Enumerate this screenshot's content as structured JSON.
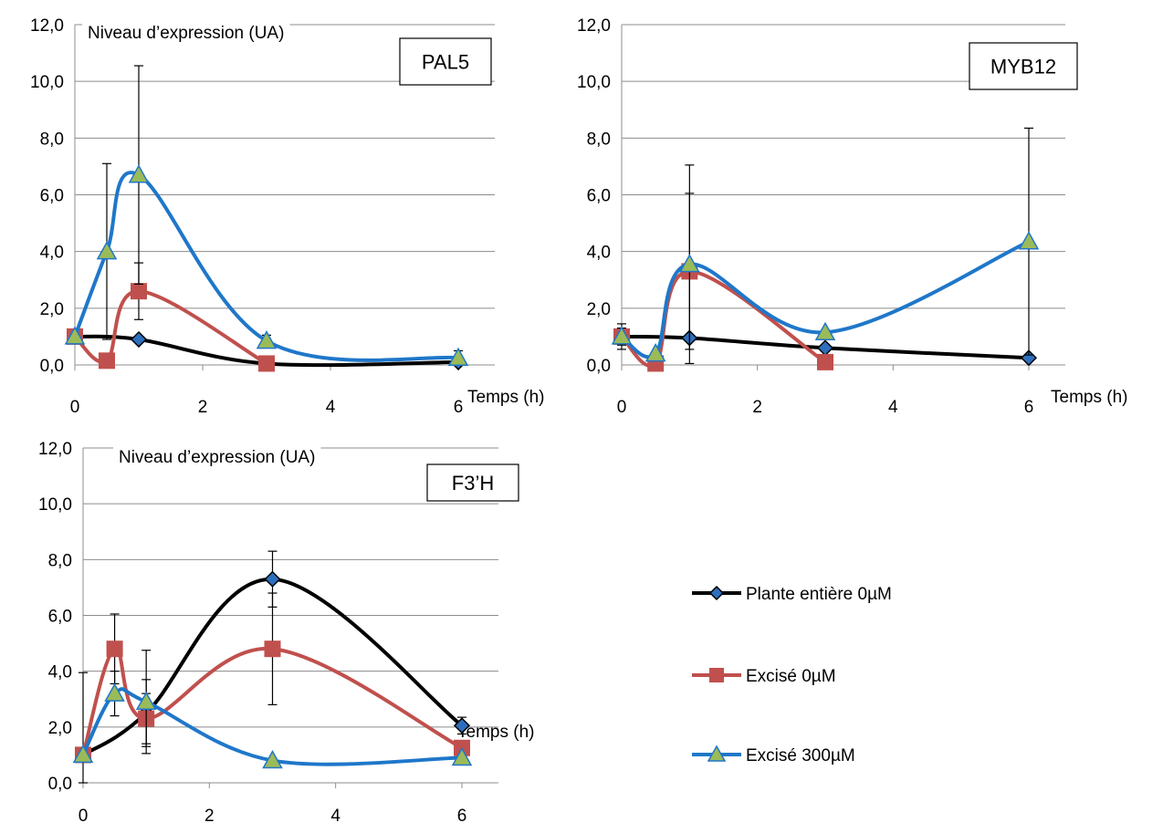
{
  "chart_data": [
    {
      "type": "line",
      "title": "PAL5",
      "ylabel": "Niveau d’expression (UA)",
      "xlabel": "Temps (h)",
      "xlim": [
        0,
        6
      ],
      "ylim": [
        0,
        12
      ],
      "x_ticks": [
        "0",
        "2",
        "4",
        "6"
      ],
      "y_ticks": [
        "0,0",
        "2,0",
        "4,0",
        "6,0",
        "8,0",
        "10,0",
        "12,0"
      ],
      "grid": true,
      "series": [
        {
          "name": "Plante entière 0µM",
          "x": [
            0,
            1,
            3,
            6
          ],
          "y": [
            1.0,
            0.9,
            0.05,
            0.1
          ],
          "err": [
            0.05,
            0.05,
            0.05,
            0.4
          ]
        },
        {
          "name": "Excisé 0µM",
          "x": [
            0,
            0.5,
            1,
            3,
            6
          ],
          "y": [
            1.0,
            0.15,
            2.6,
            0.05,
            null
          ],
          "err": [
            0.05,
            0.05,
            1.0,
            0.05,
            0
          ]
        },
        {
          "name": "Excisé 300µM",
          "x": [
            0,
            0.5,
            1,
            3,
            6
          ],
          "y": [
            1.0,
            4.0,
            6.7,
            0.85,
            0.25
          ],
          "err": [
            0.05,
            3.1,
            3.85,
            0.2,
            0.1
          ]
        }
      ]
    },
    {
      "type": "line",
      "title": "MYB12",
      "xlabel": "Temps (h)",
      "xlim": [
        0,
        6
      ],
      "ylim": [
        0,
        12
      ],
      "x_ticks": [
        "0",
        "2",
        "4",
        "6"
      ],
      "y_ticks": [
        "0,0",
        "2,0",
        "4,0",
        "6,0",
        "8,0",
        "10,0",
        "12,0"
      ],
      "grid": true,
      "series": [
        {
          "name": "Plante entière 0µM",
          "x": [
            0,
            1,
            3,
            6
          ],
          "y": [
            1.0,
            0.95,
            0.6,
            0.25
          ],
          "err": [
            0.45,
            0.05,
            0.05,
            0.05
          ]
        },
        {
          "name": "Excisé 0µM",
          "x": [
            0,
            0.5,
            1,
            3
          ],
          "y": [
            1.0,
            0.05,
            3.3,
            0.1
          ],
          "err": [
            0.2,
            0.05,
            2.75,
            0.05
          ]
        },
        {
          "name": "Excisé 300µM",
          "x": [
            0,
            0.5,
            1,
            3,
            6
          ],
          "y": [
            1.0,
            0.4,
            3.55,
            1.15,
            4.35
          ],
          "err": [
            0.3,
            0.1,
            3.5,
            0.1,
            4.0
          ]
        }
      ]
    },
    {
      "type": "line",
      "title": "F3’H",
      "ylabel": "Niveau d’expression (UA)",
      "xlabel": "Temps (h)",
      "xlim": [
        0,
        6
      ],
      "ylim": [
        0,
        12
      ],
      "x_ticks": [
        "0",
        "2",
        "4",
        "6"
      ],
      "y_ticks": [
        "0,0",
        "2,0",
        "4,0",
        "6,0",
        "8,0",
        "10,0",
        "12,0"
      ],
      "grid": true,
      "series": [
        {
          "name": "Plante entière 0µM",
          "x": [
            0,
            1,
            3,
            6
          ],
          "y": [
            1.0,
            2.5,
            7.3,
            2.05
          ],
          "err": [
            0.05,
            1.2,
            1.0,
            0.3
          ]
        },
        {
          "name": "Excisé 0µM",
          "x": [
            0,
            0.5,
            1,
            3,
            6
          ],
          "y": [
            1.0,
            4.8,
            2.3,
            4.8,
            1.25
          ],
          "err": [
            0.05,
            1.25,
            0.9,
            2.0,
            0.1
          ]
        },
        {
          "name": "Excisé 300µM",
          "x": [
            0,
            0.5,
            1,
            3,
            6
          ],
          "y": [
            1.0,
            3.2,
            2.9,
            0.8,
            0.9
          ],
          "err": [
            2.95,
            0.8,
            1.85,
            0.05,
            0.1
          ]
        }
      ]
    }
  ],
  "legend": {
    "placement": "bottom-right",
    "items": [
      {
        "label": "Plante entière 0µM",
        "color": "#000000",
        "marker": "diamond",
        "marker_fill": "#2e6fbd"
      },
      {
        "label": "Excisé 0µM",
        "color": "#c0504d",
        "marker": "square",
        "marker_fill": "#c0504d"
      },
      {
        "label": "Excisé 300µM",
        "color": "#1f77c9",
        "marker": "triangle",
        "marker_fill": "#9bbb59"
      }
    ]
  }
}
